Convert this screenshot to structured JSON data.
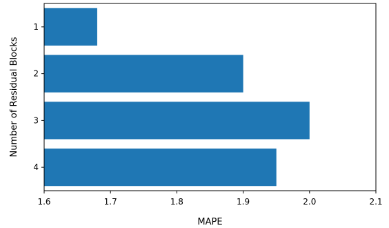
{
  "chart_data": {
    "type": "bar",
    "orientation": "horizontal",
    "categories": [
      "1",
      "2",
      "3",
      "4"
    ],
    "values": [
      1.68,
      1.9,
      2.0,
      1.95
    ],
    "bar_color": "#1f77b4",
    "xlabel": "MAPE",
    "ylabel": "Number of Residual Blocks",
    "xlim": [
      1.6,
      2.1
    ],
    "xticks": [
      "1.6",
      "1.7",
      "1.8",
      "1.9",
      "2.0",
      "2.1"
    ],
    "grid": false
  }
}
